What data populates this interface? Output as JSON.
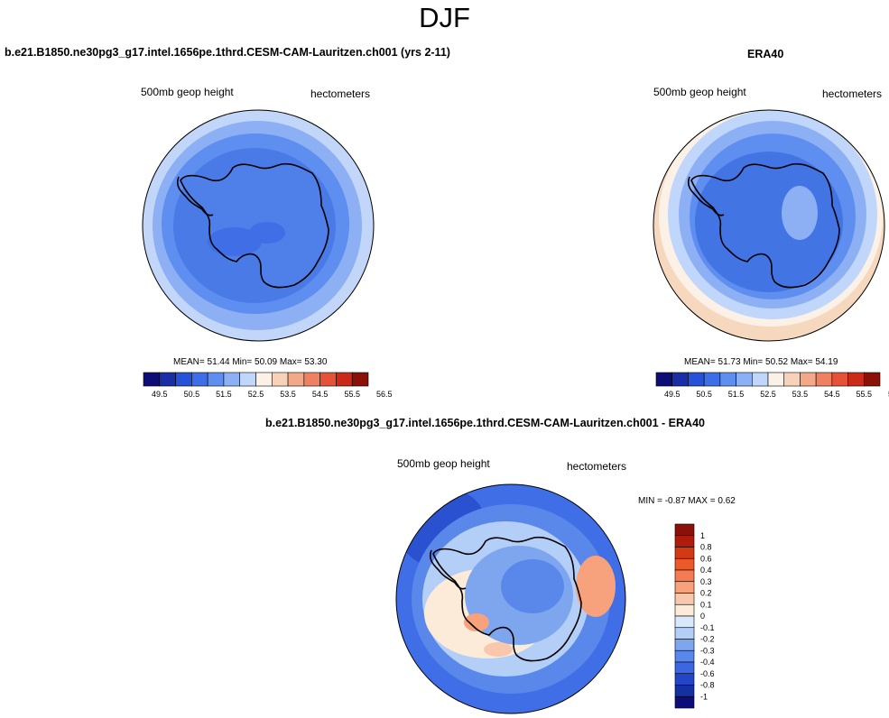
{
  "figure": {
    "title": "DJF"
  },
  "panels": [
    {
      "title": "b.e21.B1850.ne30pg3_g17.intel.1656pe.1thrd.CESM-CAM-Lauritzen.ch001 (yrs 2-11)",
      "left_label": "500mb geop height",
      "right_label": "hectometers",
      "stats": "MEAN=  51.44  Min=  50.09  Max=  53.30"
    },
    {
      "title": "ERA40",
      "left_label": "500mb geop height",
      "right_label": "hectometers",
      "stats": "MEAN=  51.73  Min=  50.52  Max=  54.19"
    },
    {
      "title": "b.e21.B1850.ne30pg3_g17.intel.1656pe.1thrd.CESM-CAM-Lauritzen.ch001 - ERA40",
      "left_label": "500mb geop height",
      "right_label": "hectometers",
      "stats": "MIN =  -0.87 MAX =   0.62"
    }
  ],
  "colorbar_horizontal": {
    "colors": [
      "#0d0d78",
      "#1a2ea6",
      "#2552d6",
      "#3d6ee8",
      "#5e8ef0",
      "#8cb0f5",
      "#c0d6fa",
      "#fbf1e6",
      "#f8d2b8",
      "#f3a888",
      "#ef8060",
      "#e65238",
      "#cc2a18",
      "#8a1008"
    ],
    "labels": [
      "49.5",
      "50.5",
      "51.5",
      "52.5",
      "53.5",
      "54.5",
      "55.5",
      "56.5"
    ]
  },
  "colorbar_vertical": {
    "colors": [
      "#8a1008",
      "#b01c0c",
      "#d23a16",
      "#ec5a2a",
      "#f47c50",
      "#f7a27c",
      "#f9c8ac",
      "#fcebd9",
      "#d9e8fb",
      "#b3cef7",
      "#7ea6ef",
      "#5a88ea",
      "#3b68e2",
      "#2146c8",
      "#1530a2",
      "#0d0d78"
    ],
    "labels": [
      "1",
      "0.8",
      "0.6",
      "0.4",
      "0.3",
      "0.2",
      "0.1",
      "0",
      "-0.1",
      "-0.2",
      "-0.3",
      "-0.4",
      "-0.6",
      "-0.8",
      "-1"
    ]
  },
  "colors": {
    "continent_outline": "#000000",
    "model_field": "#4a7ae6",
    "obs_field": "#4374e4"
  }
}
